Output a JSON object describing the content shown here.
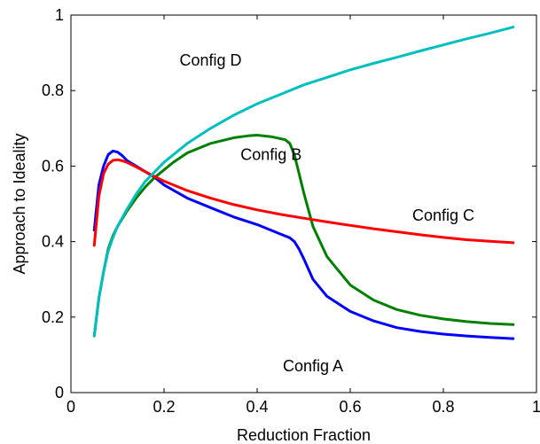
{
  "chart_data": {
    "type": "line",
    "title": "",
    "xlabel": "Reduction Fraction",
    "ylabel": "Approach to Ideality",
    "xlim": [
      0,
      1
    ],
    "ylim": [
      0,
      1
    ],
    "x_ticks": [
      0,
      0.2,
      0.4,
      0.6,
      0.8,
      1
    ],
    "x_tick_labels": [
      "0",
      "0.2",
      "0.4",
      "0.6",
      "0.8",
      "1"
    ],
    "y_ticks": [
      0,
      0.2,
      0.4,
      0.6,
      0.8,
      1
    ],
    "y_tick_labels": [
      "0",
      "0.2",
      "0.4",
      "0.6",
      "0.8",
      "1"
    ],
    "grid": false,
    "legend": "none",
    "series": [
      {
        "name": "Config A",
        "color": "#0000ff",
        "label_at": [
          0.52,
          0.07
        ],
        "x": [
          0.05,
          0.06,
          0.07,
          0.08,
          0.09,
          0.1,
          0.11,
          0.12,
          0.14,
          0.16,
          0.18,
          0.2,
          0.25,
          0.3,
          0.35,
          0.4,
          0.45,
          0.47,
          0.48,
          0.49,
          0.5,
          0.52,
          0.55,
          0.6,
          0.65,
          0.7,
          0.75,
          0.8,
          0.85,
          0.9,
          0.95
        ],
        "y": [
          0.43,
          0.55,
          0.6,
          0.63,
          0.64,
          0.637,
          0.628,
          0.615,
          0.6,
          0.585,
          0.57,
          0.55,
          0.515,
          0.49,
          0.465,
          0.445,
          0.42,
          0.41,
          0.4,
          0.38,
          0.355,
          0.3,
          0.255,
          0.215,
          0.19,
          0.172,
          0.162,
          0.155,
          0.15,
          0.146,
          0.143
        ]
      },
      {
        "name": "Config B",
        "color": "#008000",
        "label_at": [
          0.43,
          0.63
        ],
        "x": [
          0.05,
          0.06,
          0.07,
          0.08,
          0.09,
          0.1,
          0.12,
          0.14,
          0.16,
          0.18,
          0.2,
          0.22,
          0.25,
          0.3,
          0.35,
          0.38,
          0.4,
          0.43,
          0.46,
          0.47,
          0.48,
          0.49,
          0.5,
          0.52,
          0.55,
          0.6,
          0.65,
          0.7,
          0.75,
          0.8,
          0.85,
          0.9,
          0.95
        ],
        "y": [
          0.15,
          0.25,
          0.32,
          0.38,
          0.415,
          0.44,
          0.48,
          0.515,
          0.545,
          0.57,
          0.59,
          0.61,
          0.635,
          0.66,
          0.675,
          0.68,
          0.682,
          0.678,
          0.67,
          0.66,
          0.63,
          0.58,
          0.53,
          0.44,
          0.36,
          0.285,
          0.245,
          0.22,
          0.205,
          0.195,
          0.188,
          0.183,
          0.18
        ]
      },
      {
        "name": "Config C",
        "color": "#ff0000",
        "label_at": [
          0.8,
          0.47
        ],
        "x": [
          0.05,
          0.06,
          0.07,
          0.08,
          0.09,
          0.1,
          0.11,
          0.12,
          0.14,
          0.16,
          0.18,
          0.2,
          0.25,
          0.3,
          0.35,
          0.4,
          0.45,
          0.5,
          0.55,
          0.6,
          0.65,
          0.7,
          0.75,
          0.8,
          0.85,
          0.9,
          0.95
        ],
        "y": [
          0.39,
          0.52,
          0.58,
          0.605,
          0.615,
          0.617,
          0.614,
          0.61,
          0.598,
          0.585,
          0.572,
          0.56,
          0.535,
          0.515,
          0.498,
          0.484,
          0.472,
          0.462,
          0.452,
          0.443,
          0.434,
          0.426,
          0.418,
          0.411,
          0.405,
          0.401,
          0.397
        ]
      },
      {
        "name": "Config D",
        "color": "#00bfbf",
        "label_at": [
          0.3,
          0.88
        ],
        "x": [
          0.05,
          0.06,
          0.07,
          0.08,
          0.09,
          0.1,
          0.12,
          0.14,
          0.16,
          0.18,
          0.2,
          0.25,
          0.3,
          0.35,
          0.4,
          0.45,
          0.5,
          0.55,
          0.6,
          0.65,
          0.7,
          0.75,
          0.8,
          0.85,
          0.9,
          0.95
        ],
        "y": [
          0.15,
          0.25,
          0.32,
          0.375,
          0.41,
          0.44,
          0.485,
          0.525,
          0.56,
          0.585,
          0.61,
          0.66,
          0.7,
          0.735,
          0.765,
          0.79,
          0.815,
          0.835,
          0.855,
          0.872,
          0.888,
          0.905,
          0.921,
          0.937,
          0.952,
          0.968
        ]
      }
    ]
  }
}
